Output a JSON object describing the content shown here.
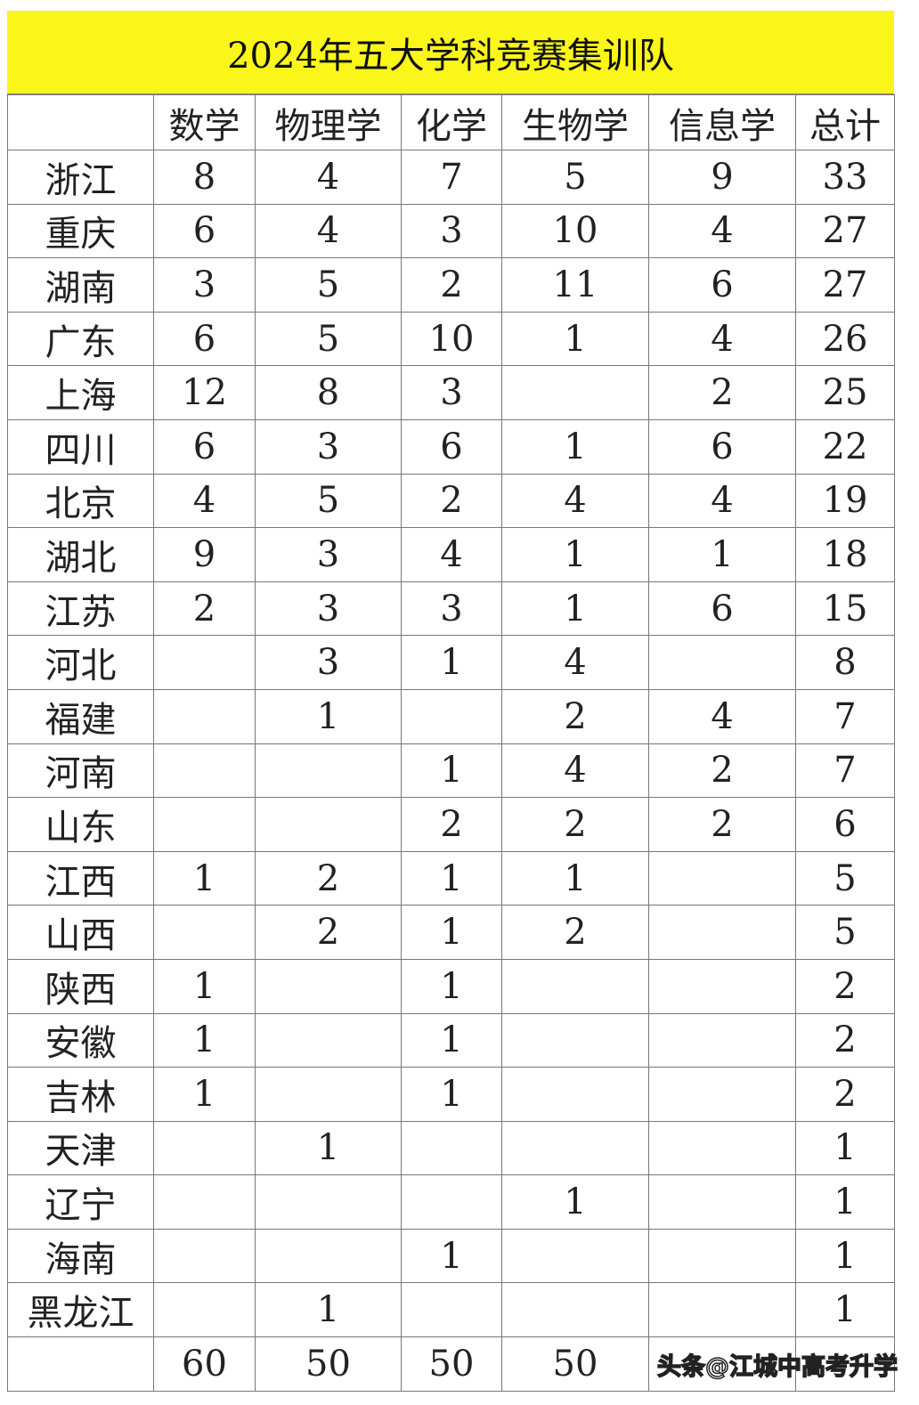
{
  "title": "2024年五大学科竞赛集训队",
  "columns": [
    "",
    "数学",
    "物理学",
    "化学",
    "生物学",
    "信息学",
    "总计"
  ],
  "rows": [
    [
      "浙江",
      "8",
      "4",
      "7",
      "5",
      "9",
      "33"
    ],
    [
      "重庆",
      "6",
      "4",
      "3",
      "10",
      "4",
      "27"
    ],
    [
      "湖南",
      "3",
      "5",
      "2",
      "11",
      "6",
      "27"
    ],
    [
      "广东",
      "6",
      "5",
      "10",
      "1",
      "4",
      "26"
    ],
    [
      "上海",
      "12",
      "8",
      "3",
      "",
      "2",
      "25"
    ],
    [
      "四川",
      "6",
      "3",
      "6",
      "1",
      "6",
      "22"
    ],
    [
      "北京",
      "4",
      "5",
      "2",
      "4",
      "4",
      "19"
    ],
    [
      "湖北",
      "9",
      "3",
      "4",
      "1",
      "1",
      "18"
    ],
    [
      "江苏",
      "2",
      "3",
      "3",
      "1",
      "6",
      "15"
    ],
    [
      "河北",
      "",
      "3",
      "1",
      "4",
      "",
      "8"
    ],
    [
      "福建",
      "",
      "1",
      "",
      "2",
      "4",
      "7"
    ],
    [
      "河南",
      "",
      "",
      "1",
      "4",
      "2",
      "7"
    ],
    [
      "山东",
      "",
      "",
      "2",
      "2",
      "2",
      "6"
    ],
    [
      "江西",
      "1",
      "2",
      "1",
      "1",
      "",
      "5"
    ],
    [
      "山西",
      "",
      "2",
      "1",
      "2",
      "",
      "5"
    ],
    [
      "陕西",
      "1",
      "",
      "1",
      "",
      "",
      "2"
    ],
    [
      "安徽",
      "1",
      "",
      "1",
      "",
      "",
      "2"
    ],
    [
      "吉林",
      "1",
      "",
      "1",
      "",
      "",
      "2"
    ],
    [
      "天津",
      "",
      "1",
      "",
      "",
      "",
      "1"
    ],
    [
      "辽宁",
      "",
      "",
      "",
      "1",
      "",
      "1"
    ],
    [
      "海南",
      "",
      "",
      "1",
      "",
      "",
      "1"
    ],
    [
      "黑龙江",
      "",
      "1",
      "",
      "",
      "",
      "1"
    ]
  ],
  "totals": [
    "",
    "60",
    "50",
    "50",
    "50",
    "",
    ""
  ],
  "watermark": "头条@江城中高考升学",
  "colors": {
    "title_bg": "#fbf61a"
  }
}
